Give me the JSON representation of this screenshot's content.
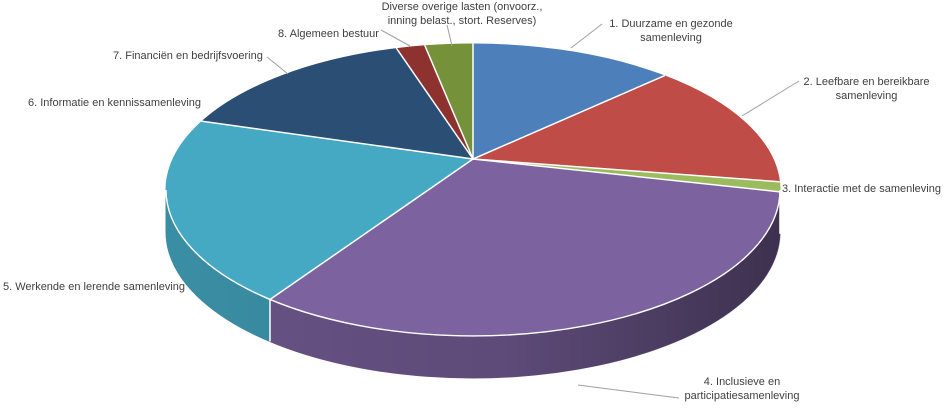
{
  "chart_data": {
    "type": "pie",
    "projection": "3d",
    "title": "",
    "legend_position": "none",
    "data_labels": "outside-callouts",
    "start_angle": "12-o-clock, clockwise",
    "slices": [
      {
        "label": "1. Duurzame en gezonde samenleving",
        "value_pct": 10.7,
        "color": "#4d80bb"
      },
      {
        "label": "2. Leefbare en bereikbare samenleving",
        "value_pct": 13.4,
        "color": "#c04c48"
      },
      {
        "label": "3. Interactie met de samenleving",
        "value_pct": 1.1,
        "color": "#9cbb5c"
      },
      {
        "label": "4. Inclusieve en participatiesamenleving",
        "value_pct": 36.3,
        "color": "#7c63a0"
      },
      {
        "label": "5. Werkende en lerende samenleving",
        "value_pct": 11.3,
        "color": "#45a9c3"
      },
      {
        "label": "6. Informatie en kennissamenleving",
        "value_pct": 10.0,
        "color": "#45a9c3"
      },
      {
        "label": "7. Financiën en bedrijfsvoering",
        "value_pct": 13.2,
        "color": "#2b4e75"
      },
      {
        "label": "8. Algemeen bestuur",
        "value_pct": 1.5,
        "color": "#8d322f"
      },
      {
        "label": "Diverse overige lasten (onvoorz., inning belast., stort. Reserves)",
        "value_pct": 2.5,
        "color": "#75923a"
      }
    ],
    "colors": {
      "label_text": "#3f3f3f",
      "leader_line": "#a0a0a0",
      "divider": "#ffffff"
    }
  }
}
